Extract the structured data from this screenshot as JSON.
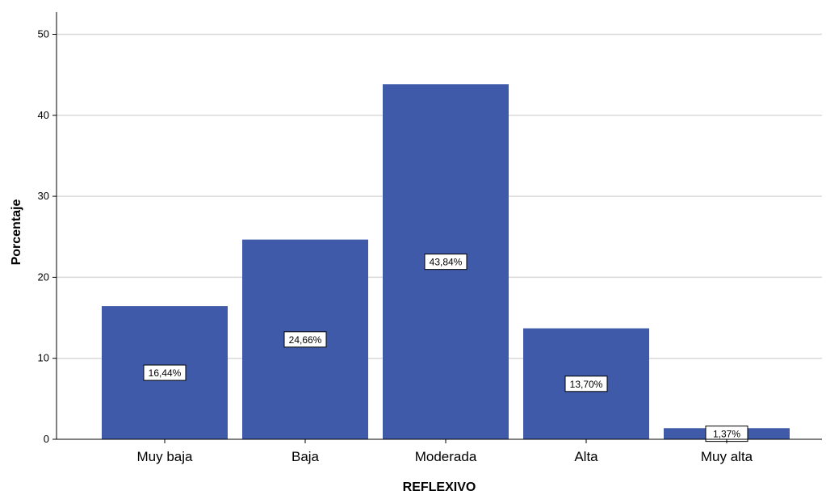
{
  "chart_data": {
    "type": "bar",
    "categories": [
      "Muy baja",
      "Baja",
      "Moderada",
      "Alta",
      "Muy alta"
    ],
    "values": [
      16.44,
      24.66,
      43.84,
      13.7,
      1.37
    ],
    "data_labels": [
      "16,44%",
      "24,66%",
      "43,84%",
      "13,70%",
      "1,37%"
    ],
    "xlabel": "REFLEXIVO",
    "ylabel": "Porcentaje",
    "ylim": [
      0,
      50
    ],
    "yticks": [
      0,
      10,
      20,
      30,
      40,
      50
    ],
    "ytick_labels": [
      "0",
      "10",
      "20",
      "30",
      "40",
      "50"
    ],
    "grid": true,
    "colors": {
      "bar": "#3f5aa8",
      "grid": "#d9d9d9",
      "axis": "#000000"
    }
  }
}
